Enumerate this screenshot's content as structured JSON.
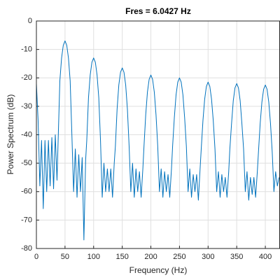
{
  "chart_data": {
    "type": "line",
    "title": "Fres = 6.0427 Hz",
    "xlabel": "Frequency (Hz)",
    "ylabel": "Power Spectrum (dB)",
    "x": [
      0,
      3,
      6,
      9,
      12,
      15,
      18,
      21,
      24,
      27,
      30,
      33,
      36,
      38,
      41,
      44,
      47,
      50,
      53,
      56,
      59,
      62,
      65,
      68,
      71,
      74,
      77,
      80,
      83,
      86,
      88,
      91,
      94,
      97,
      100,
      103,
      106,
      109,
      112,
      115,
      118,
      121,
      124,
      127,
      130,
      133,
      136,
      138,
      141,
      144,
      147,
      150,
      153,
      156,
      159,
      162,
      165,
      168,
      171,
      174,
      177,
      180,
      183,
      186,
      188,
      191,
      194,
      197,
      200,
      203,
      206,
      209,
      212,
      215,
      218,
      221,
      224,
      227,
      230,
      233,
      236,
      238,
      241,
      244,
      247,
      250,
      253,
      256,
      259,
      262,
      265,
      268,
      271,
      274,
      277,
      280,
      283,
      286,
      288,
      291,
      294,
      297,
      300,
      303,
      306,
      309,
      312,
      315,
      318,
      321,
      324,
      327,
      330,
      333,
      336,
      338,
      341,
      344,
      347,
      350,
      353,
      356,
      359,
      362,
      365,
      368,
      371,
      374,
      377,
      380,
      383,
      386,
      388,
      391,
      394,
      397,
      400,
      403,
      406,
      409,
      412,
      415,
      418,
      421,
      424
    ],
    "series": [
      {
        "name": "Power Spectrum",
        "color": "#0072bd",
        "values": [
          -22,
          -35,
          -58,
          -42,
          -66,
          -42,
          -60,
          -42,
          -58,
          -41,
          -59,
          -40,
          -56,
          -42,
          -21,
          -13,
          -8.5,
          -7,
          -8.5,
          -13,
          -21,
          -40,
          -60,
          -45,
          -62,
          -47,
          -60,
          -48,
          -77,
          -49,
          -42,
          -27,
          -19,
          -14.5,
          -13,
          -14.5,
          -19,
          -27,
          -42,
          -62,
          -50,
          -60,
          -52,
          -60,
          -52,
          -62,
          -50,
          -44,
          -31,
          -22.5,
          -18,
          -16.5,
          -18,
          -22.5,
          -31,
          -44,
          -60,
          -50,
          -62,
          -52,
          -60,
          -53,
          -62,
          -52,
          -44,
          -33,
          -25,
          -20.5,
          -19,
          -20.5,
          -25,
          -33,
          -44,
          -60,
          -52,
          -62,
          -53,
          -60,
          -54,
          -62,
          -52,
          -44,
          -34,
          -26,
          -21.5,
          -20,
          -21.5,
          -26,
          -34,
          -44,
          -60,
          -52,
          -62,
          -54,
          -60,
          -54,
          -63,
          -52,
          -45,
          -35,
          -27.5,
          -23,
          -21.5,
          -23,
          -27.5,
          -35,
          -45,
          -60,
          -53,
          -62,
          -54,
          -60,
          -55,
          -62,
          -53,
          -45,
          -36,
          -28,
          -23.5,
          -22,
          -23.5,
          -28,
          -36,
          -45,
          -60,
          -53,
          -63,
          -55,
          -61,
          -55,
          -62,
          -53,
          -46,
          -36,
          -28.5,
          -24,
          -22.5,
          -24,
          -28.5,
          -36,
          -46,
          -60,
          -53,
          -58,
          -55
        ]
      }
    ],
    "xlim": [
      0,
      425
    ],
    "ylim": [
      -80,
      0
    ],
    "xticks": [
      0,
      50,
      100,
      150,
      200,
      250,
      300,
      350,
      400
    ],
    "yticks": [
      -80,
      -70,
      -60,
      -50,
      -40,
      -30,
      -20,
      -10,
      0
    ],
    "grid": true
  }
}
